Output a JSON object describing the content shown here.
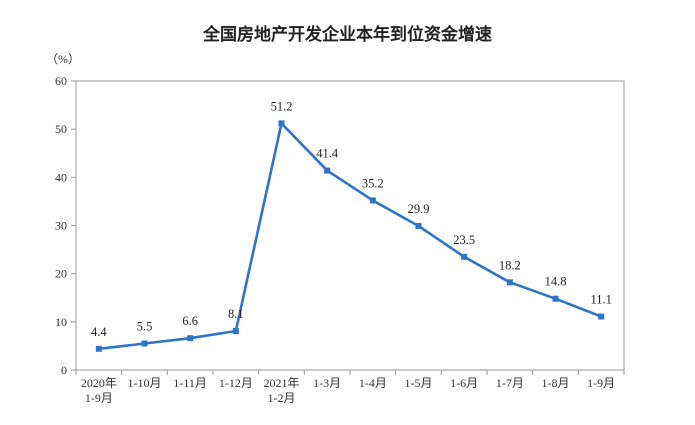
{
  "chart_data": {
    "type": "line",
    "title": "全国房地产开发企业本年到位资金增速",
    "ylabel": "（%）",
    "xlabel": "",
    "ylim": [
      0,
      60
    ],
    "yticks": [
      0,
      10,
      20,
      30,
      40,
      50,
      60
    ],
    "grid": false,
    "categories": [
      [
        "2020年",
        "1-9月"
      ],
      [
        "1-10月"
      ],
      [
        "1-11月"
      ],
      [
        "1-12月"
      ],
      [
        "2021年",
        "1-2月"
      ],
      [
        "1-3月"
      ],
      [
        "1-4月"
      ],
      [
        "1-5月"
      ],
      [
        "1-6月"
      ],
      [
        "1-7月"
      ],
      [
        "1-8月"
      ],
      [
        "1-9月"
      ]
    ],
    "series": [
      {
        "values": [
          4.4,
          5.5,
          6.6,
          8.1,
          51.2,
          41.4,
          35.2,
          29.9,
          23.5,
          18.2,
          14.8,
          11.1
        ],
        "labels": [
          "4.4",
          "5.5",
          "6.6",
          "8.1",
          "51.2",
          "41.4",
          "35.2",
          "29.9",
          "23.5",
          "18.2",
          "14.8",
          "11.1"
        ],
        "color": "#2e75c9"
      }
    ]
  }
}
